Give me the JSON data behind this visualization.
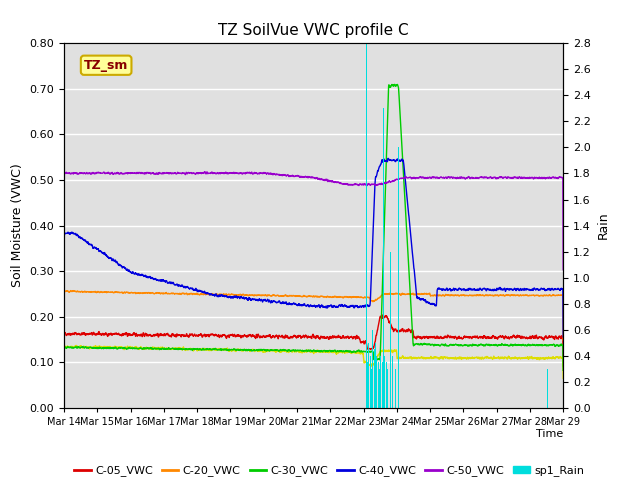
{
  "title": "TZ SoilVue VWC profile C",
  "ylabel_left": "Soil Moisture (VWC)",
  "ylabel_right": "Rain",
  "xlabel": "Time",
  "xlim": [
    0,
    15
  ],
  "ylim_left": [
    0.0,
    0.8
  ],
  "ylim_right": [
    0.0,
    2.8
  ],
  "yticks_left": [
    0.0,
    0.1,
    0.2,
    0.3,
    0.4,
    0.5,
    0.6,
    0.7,
    0.8
  ],
  "xtick_labels": [
    "Mar 14",
    "Mar 15",
    "Mar 16",
    "Mar 17",
    "Mar 18",
    "Mar 19",
    "Mar 20",
    "Mar 21",
    "Mar 22",
    "Mar 23",
    "Mar 24",
    "Mar 25",
    "Mar 26",
    "Mar 27",
    "Mar 28",
    "Mar 29"
  ],
  "colors": {
    "C05": "#dd0000",
    "C10": "#dddd00",
    "C20": "#ff8800",
    "C30": "#00cc00",
    "C40": "#0000dd",
    "C50": "#9900cc",
    "rain": "#00dddd"
  },
  "bg_color": "#e0e0e0",
  "annotation_box": {
    "text": "TZ_sm",
    "facecolor": "#ffff99",
    "edgecolor": "#ccaa00",
    "textcolor": "#880000"
  },
  "rain_days": [
    9.08,
    9.12,
    9.16,
    9.2,
    9.24,
    9.28,
    9.32,
    9.36,
    9.4,
    9.44,
    9.48,
    9.52,
    9.56,
    9.6,
    9.64,
    9.68,
    9.72,
    9.8,
    9.88,
    9.96,
    10.04,
    14.52
  ],
  "rain_vals": [
    2.8,
    0.35,
    0.5,
    0.4,
    0.3,
    0.6,
    0.45,
    0.5,
    0.4,
    0.35,
    0.3,
    0.4,
    0.35,
    2.3,
    0.4,
    0.35,
    0.3,
    1.2,
    0.4,
    0.3,
    2.0,
    0.3
  ]
}
